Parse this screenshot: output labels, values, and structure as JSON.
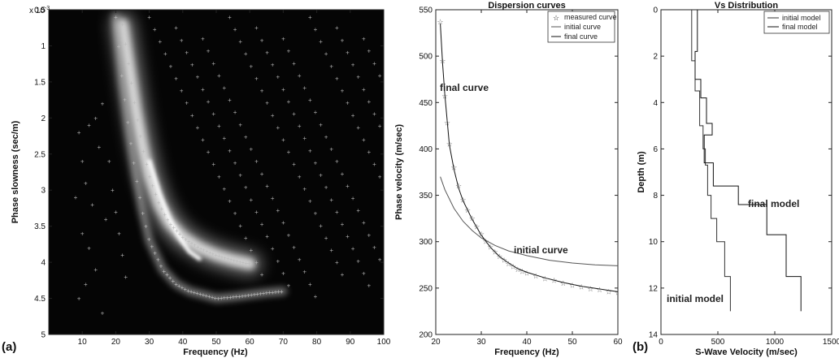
{
  "panel_labels": {
    "a": "(a)",
    "b": "(b)"
  },
  "chart_data": [
    {
      "type": "heatmap",
      "xlabel": "Frequency (Hz)",
      "ylabel": "Phase slowness (sec/m)",
      "y_exponent": "x 10",
      "y_exponent_power": "-3",
      "xlim": [
        0,
        100
      ],
      "ylim": [
        0.5,
        5
      ],
      "y_inverted": true,
      "xticks": [
        "10",
        "20",
        "30",
        "40",
        "50",
        "60",
        "70",
        "80",
        "90",
        "100"
      ],
      "yticks": [
        "0.5",
        "1",
        "1.5",
        "2",
        "2.5",
        "3",
        "3.5",
        "4",
        "4.5",
        "5"
      ],
      "ridges": [
        {
          "x": [
            22,
            24,
            26,
            28,
            30,
            33,
            36,
            40,
            45,
            50,
            55,
            60
          ],
          "y": [
            0.7,
            1.3,
            1.9,
            2.4,
            2.8,
            3.2,
            3.45,
            3.65,
            3.8,
            3.9,
            3.97,
            4.02
          ]
        },
        {
          "x": [
            20,
            22,
            24,
            26,
            28,
            30,
            34,
            38,
            42,
            46,
            50,
            55,
            60,
            65,
            70
          ],
          "y": [
            0.6,
            1.5,
            2.2,
            2.8,
            3.3,
            3.7,
            4.1,
            4.3,
            4.4,
            4.45,
            4.5,
            4.48,
            4.45,
            4.42,
            4.4
          ]
        },
        {
          "x": [
            30,
            33,
            36,
            39,
            42,
            45
          ],
          "y": [
            2.6,
            3.05,
            3.4,
            3.65,
            3.85,
            3.95
          ]
        }
      ]
    },
    {
      "type": "line",
      "title": "Dispersion curves",
      "xlabel": "Frequency (Hz)",
      "ylabel": "Phase velocity (m/sec)",
      "xlim": [
        20,
        60
      ],
      "ylim": [
        200,
        550
      ],
      "xticks": [
        "20",
        "30",
        "40",
        "50",
        "60"
      ],
      "yticks": [
        "200",
        "250",
        "300",
        "350",
        "400",
        "450",
        "500",
        "550"
      ],
      "legend_position": "top-right",
      "series": [
        {
          "name": "measured curve",
          "marker": "star",
          "x": [
            21,
            21.5,
            22,
            22.5,
            23,
            24,
            25,
            26,
            27,
            28,
            29,
            30,
            31,
            32,
            33,
            34,
            35,
            36,
            37,
            38,
            39,
            40,
            42,
            44,
            46,
            48,
            50,
            52,
            54,
            56,
            58,
            60
          ],
          "values": [
            537,
            495,
            457,
            428,
            405,
            380,
            360,
            345,
            334,
            325,
            316,
            308,
            300,
            294,
            289,
            284,
            280,
            276,
            273,
            270,
            268,
            266,
            263,
            260,
            258,
            255,
            253,
            251,
            249,
            248,
            246,
            245
          ]
        },
        {
          "name": "initial curve",
          "x": [
            21,
            22,
            24,
            26,
            28,
            30,
            33,
            36,
            40,
            45,
            50,
            55,
            60
          ],
          "values": [
            370,
            356,
            336,
            322,
            312,
            304,
            296,
            290,
            285,
            280,
            277,
            275,
            274
          ]
        },
        {
          "name": "final curve",
          "x": [
            21,
            21.5,
            22,
            23,
            24,
            25,
            26,
            28,
            30,
            32,
            34,
            36,
            38,
            40,
            44,
            48,
            52,
            56,
            60
          ],
          "values": [
            535,
            492,
            458,
            404,
            378,
            358,
            344,
            324,
            307,
            294,
            284,
            277,
            271,
            267,
            261,
            256,
            252,
            249,
            246
          ]
        }
      ],
      "annotations": [
        "final curve",
        "initial curve"
      ]
    },
    {
      "type": "line",
      "title": "Vs Distribution",
      "xlabel": "S-Wave Velocity (m/sec)",
      "ylabel": "Depth (m)",
      "xlim": [
        0,
        1500
      ],
      "ylim": [
        0,
        14
      ],
      "y_inverted": true,
      "xticks": [
        "0",
        "500",
        "1000",
        "1500"
      ],
      "yticks": [
        "0",
        "2",
        "4",
        "6",
        "8",
        "10",
        "12",
        "14"
      ],
      "legend_position": "top-right",
      "series": [
        {
          "name": "initial model",
          "x": [
            270,
            270,
            300,
            300,
            340,
            340,
            370,
            370,
            390,
            390,
            410,
            410,
            440,
            440,
            490,
            490,
            560,
            560,
            610,
            610
          ],
          "values": [
            0,
            2.2,
            2.2,
            3.5,
            3.5,
            5.0,
            5.0,
            6.0,
            6.0,
            6.7,
            6.7,
            8.0,
            8.0,
            9.0,
            9.0,
            10.0,
            10.0,
            11.5,
            11.5,
            13.0
          ]
        },
        {
          "name": "final model",
          "x": [
            320,
            320,
            300,
            300,
            350,
            350,
            400,
            400,
            450,
            450,
            380,
            380,
            460,
            460,
            680,
            680,
            930,
            930,
            1100,
            1100,
            1230,
            1230
          ],
          "values": [
            0,
            1.8,
            1.8,
            3.0,
            3.0,
            3.8,
            3.8,
            4.9,
            4.9,
            5.4,
            5.4,
            6.6,
            6.6,
            7.6,
            7.6,
            8.4,
            8.4,
            9.7,
            9.7,
            11.5,
            11.5,
            13.0
          ]
        }
      ],
      "annotations": [
        "final model",
        "initial model"
      ]
    }
  ]
}
